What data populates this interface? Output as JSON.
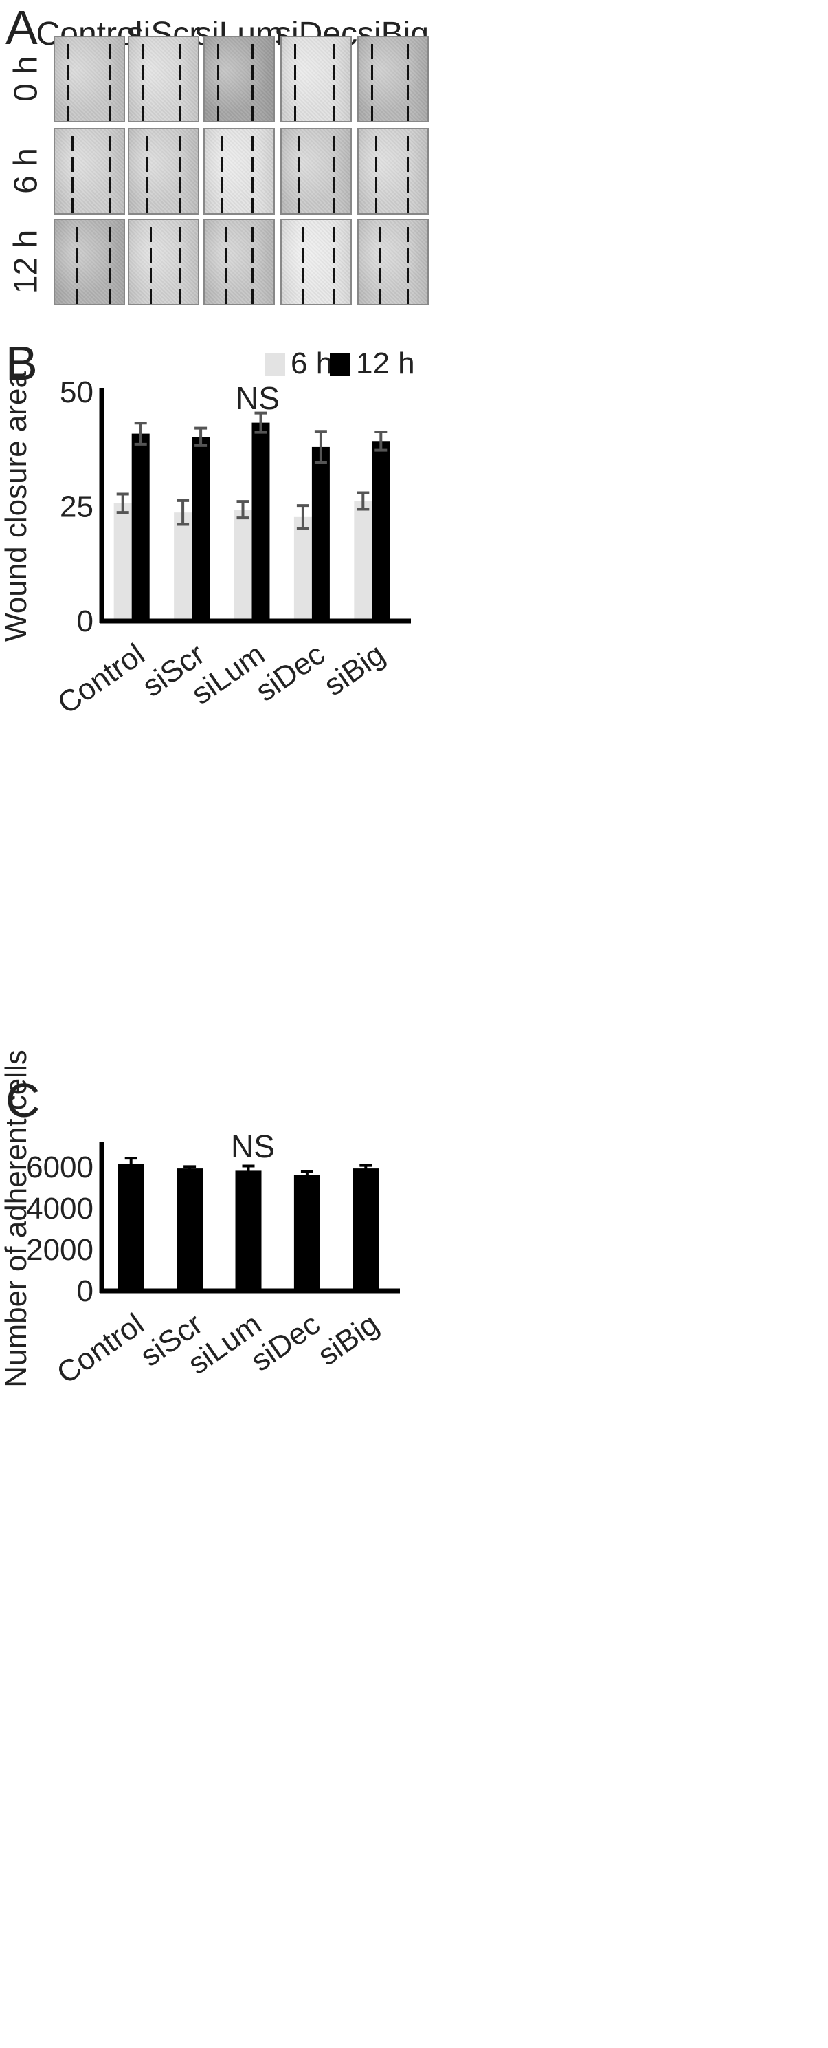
{
  "panels": {
    "a": "A",
    "b": "B",
    "c": "C"
  },
  "micrograph_grid": {
    "columns": [
      "Control",
      "siScr",
      "siLum",
      "siDec",
      "siBig"
    ],
    "rows": [
      "0 h",
      "6 h",
      "12 h"
    ],
    "tones": [
      [
        "#c9c9c9",
        "#d7d7d7",
        "#a8a8a8",
        "#e2e2e2",
        "#b9b9b9"
      ],
      [
        "#d0d0d0",
        "#cdcdcd",
        "#e4e4e4",
        "#cacaca",
        "#d2d2d2"
      ],
      [
        "#b4b4b4",
        "#d3d3d3",
        "#c6c6c6",
        "#e9e9e9",
        "#cbcbcb"
      ]
    ]
  },
  "chart_data": [
    {
      "type": "bar",
      "categories": [
        "Control",
        "siScr",
        "siLum",
        "siDec",
        "siBig"
      ],
      "series": [
        {
          "name": "6 h",
          "color": "#e3e3e3",
          "values": [
            25.7,
            23.7,
            24.3,
            22.7,
            26.2
          ],
          "errors": [
            2.0,
            2.6,
            1.8,
            2.5,
            1.8
          ]
        },
        {
          "name": "12 h",
          "color": "#000000",
          "values": [
            40.9,
            40.2,
            43.3,
            38.0,
            39.3
          ],
          "errors": [
            2.3,
            1.9,
            2.1,
            3.4,
            2.0
          ]
        }
      ],
      "ylabel": "Wound closure area",
      "yticks": [
        0,
        25,
        50
      ],
      "ylim": [
        0,
        50
      ],
      "annotation": "NS",
      "legend": "top-right"
    },
    {
      "type": "bar",
      "categories": [
        "Control",
        "siScr",
        "siLum",
        "siDec",
        "siBig"
      ],
      "series": [
        {
          "color": "#000000",
          "values": [
            6150,
            5930,
            5820,
            5630,
            5930
          ],
          "errors": [
            280,
            90,
            230,
            170,
            150
          ]
        }
      ],
      "ylabel": "Number of adherent cells",
      "yticks": [
        0,
        2000,
        4000,
        6000
      ],
      "ylim": [
        0,
        7000
      ],
      "annotation": "NS"
    }
  ]
}
